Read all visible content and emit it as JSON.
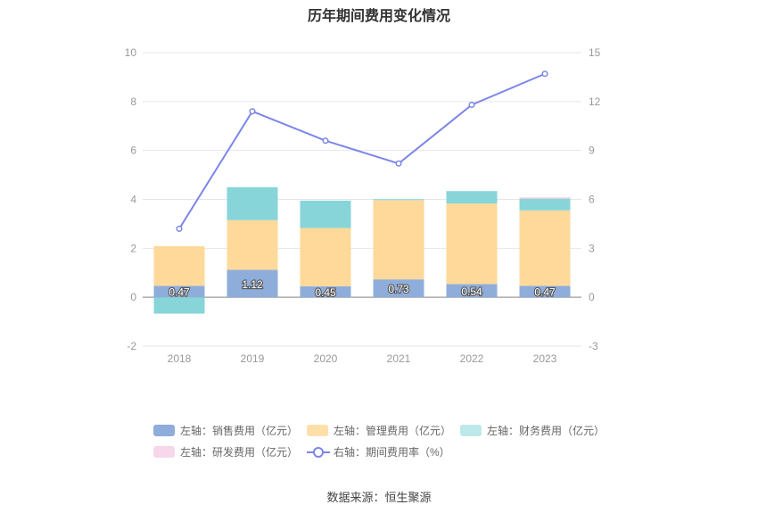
{
  "title": "历年期间费用变化情况",
  "source": "数据来源：恒生聚源",
  "chart_data": {
    "type": "bar",
    "stacked": true,
    "categories": [
      "2018",
      "2019",
      "2020",
      "2021",
      "2022",
      "2023"
    ],
    "series": [
      {
        "name": "左轴：销售费用（亿元）",
        "axis": "left",
        "type": "bar",
        "color": "#8eaddb",
        "values": [
          0.47,
          1.12,
          0.45,
          0.73,
          0.54,
          0.47
        ],
        "labels": [
          "0.47",
          "1.12",
          "0.45",
          "0.73",
          "0.54",
          "0.47"
        ]
      },
      {
        "name": "左轴：管理费用（亿元）",
        "axis": "left",
        "type": "bar",
        "color": "#ffd99a",
        "values": [
          1.62,
          2.03,
          2.38,
          3.24,
          3.29,
          3.08
        ]
      },
      {
        "name": "左轴：财务费用（亿元）",
        "axis": "left",
        "type": "bar",
        "color": "#87d5d9",
        "values": [
          -0.67,
          1.35,
          1.12,
          0.04,
          0.51,
          0.48
        ]
      },
      {
        "name": "左轴：研发费用（亿元）",
        "axis": "left",
        "type": "bar",
        "color": "#f4c6e2",
        "values": [
          0,
          0,
          0,
          0,
          0,
          0.05
        ]
      },
      {
        "name": "右轴：期间费用率（%）",
        "axis": "right",
        "type": "line",
        "color": "#7b86e8",
        "values": [
          4.2,
          11.4,
          9.6,
          8.2,
          11.8,
          13.7
        ]
      }
    ],
    "y_left": {
      "min": -2,
      "max": 10,
      "ticks": [
        "-2",
        "0",
        "2",
        "4",
        "6",
        "8",
        "10"
      ]
    },
    "y_right": {
      "min": -3,
      "max": 15,
      "ticks": [
        "-3",
        "0",
        "3",
        "6",
        "9",
        "12",
        "15"
      ]
    },
    "grid": true,
    "legend_position": "bottom"
  }
}
